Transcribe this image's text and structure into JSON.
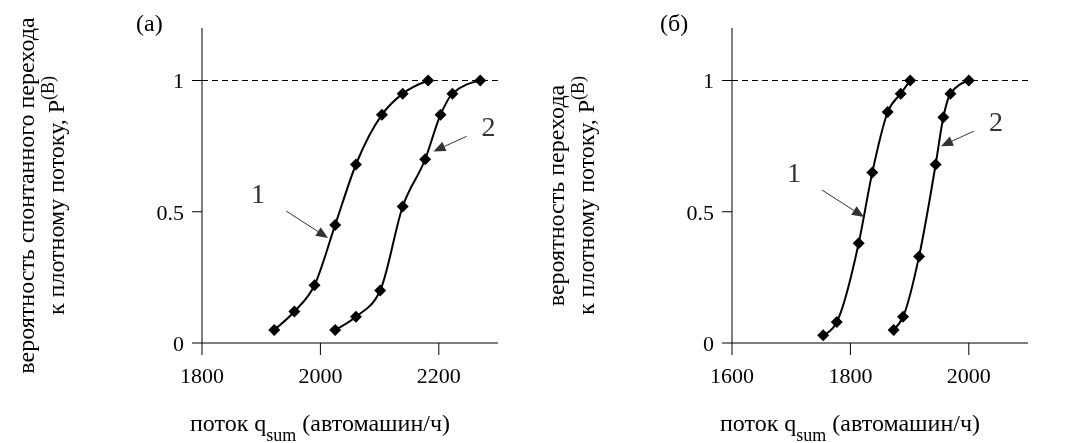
{
  "chart_data": [
    {
      "type": "line",
      "title": "(a)",
      "xlabel": "поток q$_{sum}$  (автомашин/ч)",
      "ylabel": "вероятность спонтанного перехода к плотному потоку, P$^{(B)}$",
      "series": [
        {
          "color": "#000000",
          "x": [
            1922,
            1956,
            1990,
            2025,
            2060,
            2104,
            2139,
            2182
          ],
          "values": [
            0.05,
            0.12,
            0.22,
            0.45,
            0.68,
            0.87,
            0.95,
            1.0
          ]
        },
        {
          "color": "#000000",
          "x": [
            2025,
            2060,
            2101,
            2139,
            2177,
            2203,
            2223,
            2270
          ],
          "values": [
            0.05,
            0.1,
            0.2,
            0.52,
            0.7,
            0.87,
            0.95,
            1.0
          ]
        }
      ],
      "annotations": [
        {
          "text": "1",
          "x": 2013,
          "y": 0.4
        },
        {
          "text": "2",
          "x": 2191,
          "y": 0.73
        }
      ],
      "ref_lines": [
        {
          "axis": "y",
          "value": 1,
          "line_style": "dashed",
          "color": "#000000"
        }
      ],
      "xlim": [
        1800,
        2300
      ],
      "xticks": [
        1800,
        2000,
        2200
      ],
      "ylim": [
        0,
        1.2
      ],
      "yticks": [
        0,
        0.5,
        1
      ],
      "marker": "diamond",
      "line_style": "solid",
      "grid": false
    },
    {
      "type": "line",
      "title": "(б)",
      "xlabel": "поток q$_{sum}$  (автомашин/ч)",
      "ylabel": "вероятность перехода к плотному потоку, P$^{(B)}$",
      "series": [
        {
          "color": "#000000",
          "x": [
            1754,
            1777,
            1814,
            1837,
            1863,
            1885,
            1901
          ],
          "values": [
            0.03,
            0.08,
            0.38,
            0.65,
            0.88,
            0.95,
            1.0
          ]
        },
        {
          "color": "#000000",
          "x": [
            1873,
            1889,
            1916,
            1944,
            1957,
            1969,
            2000
          ],
          "values": [
            0.05,
            0.1,
            0.33,
            0.68,
            0.86,
            0.95,
            1.0
          ]
        }
      ],
      "annotations": [
        {
          "text": "1",
          "x": 1823,
          "y": 0.48
        },
        {
          "text": "2",
          "x": 1953,
          "y": 0.75
        }
      ],
      "ref_lines": [
        {
          "axis": "y",
          "value": 1,
          "line_style": "dashed",
          "color": "#000000"
        }
      ],
      "xlim": [
        1600,
        2100
      ],
      "xticks": [
        1600,
        1800,
        2000
      ],
      "ylim": [
        0,
        1.2
      ],
      "yticks": [
        0,
        0.5,
        1
      ],
      "marker": "diamond",
      "line_style": "solid",
      "grid": false
    }
  ]
}
